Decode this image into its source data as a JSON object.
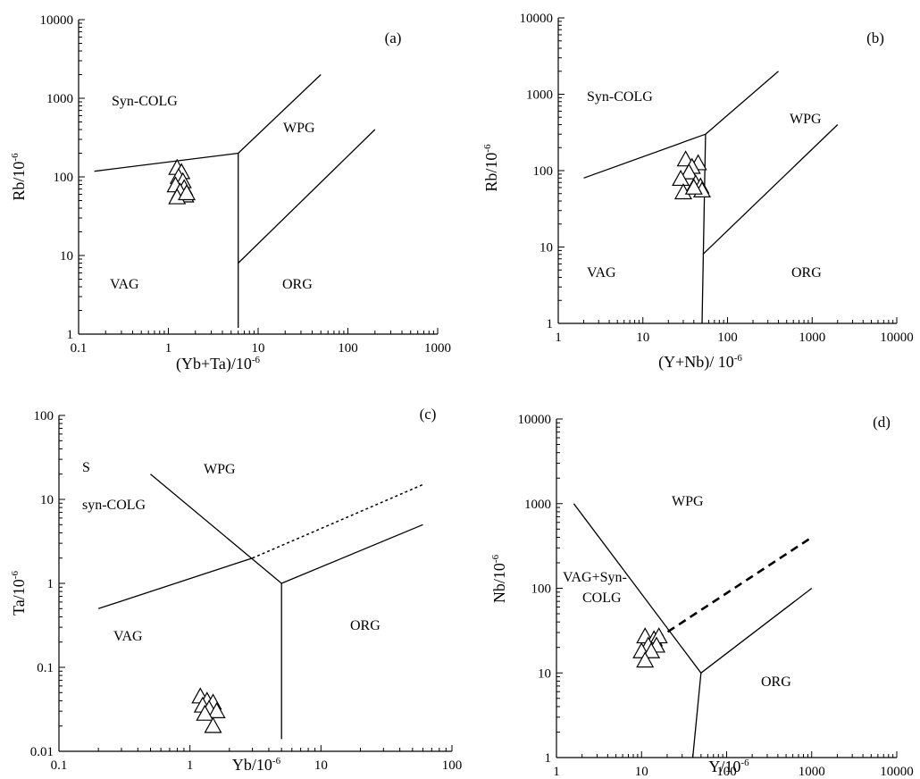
{
  "chart_data": [
    {
      "id": "a",
      "type": "scatter",
      "panel_label": "(a)",
      "xlabel": "(Yb+Ta)/10",
      "xlabel_sup": "-6",
      "ylabel": "Rb/10",
      "ylabel_sup": "-6",
      "xscale": "log",
      "yscale": "log",
      "xlim": [
        0.1,
        1000
      ],
      "ylim": [
        1,
        10000
      ],
      "xticks": [
        "0.1",
        "1",
        "10",
        "100",
        "1000"
      ],
      "yticks": [
        "1",
        "10",
        "100",
        "1000",
        "10000"
      ],
      "regions": [
        "Syn-COLG",
        "WPG",
        "VAG",
        "ORG"
      ],
      "boundaries": [
        {
          "style": "solid",
          "points": [
            [
              0.15,
              118
            ],
            [
              6,
              200
            ]
          ]
        },
        {
          "style": "solid",
          "points": [
            [
              6,
              200
            ],
            [
              6,
              1.2
            ]
          ]
        },
        {
          "style": "solid",
          "points": [
            [
              6,
              200
            ],
            [
              50,
              2000
            ]
          ]
        },
        {
          "style": "solid",
          "points": [
            [
              6,
              8
            ],
            [
              200,
              400
            ]
          ]
        }
      ],
      "points": [
        [
          1.25,
          130
        ],
        [
          1.4,
          115
        ],
        [
          1.3,
          100
        ],
        [
          1.45,
          88
        ],
        [
          1.2,
          78
        ],
        [
          1.5,
          72
        ],
        [
          1.35,
          65
        ],
        [
          1.55,
          58
        ],
        [
          1.25,
          55
        ],
        [
          1.6,
          62
        ]
      ]
    },
    {
      "id": "b",
      "type": "scatter",
      "panel_label": "(b)",
      "xlabel": "(Y+Nb)/ 10",
      "xlabel_sup": "-6",
      "ylabel": "Rb/10",
      "ylabel_sup": "-6",
      "xscale": "log",
      "yscale": "log",
      "xlim": [
        1,
        10000
      ],
      "ylim": [
        1,
        10000
      ],
      "xticks": [
        "1",
        "10",
        "100",
        "1000",
        "10000"
      ],
      "yticks": [
        "1",
        "10",
        "100",
        "1000",
        "10000"
      ],
      "regions": [
        "Syn-COLG",
        "WPG",
        "VAG",
        "ORG"
      ],
      "boundaries": [
        {
          "style": "solid",
          "points": [
            [
              2,
              80
            ],
            [
              55,
              300
            ]
          ]
        },
        {
          "style": "solid",
          "points": [
            [
              55,
              300
            ],
            [
              400,
              2000
            ]
          ]
        },
        {
          "style": "solid",
          "points": [
            [
              55,
              300
            ],
            [
              50,
              1
            ]
          ]
        },
        {
          "style": "solid",
          "points": [
            [
              51,
              8
            ],
            [
              2000,
              400
            ]
          ]
        }
      ],
      "points": [
        [
          32,
          140
        ],
        [
          45,
          125
        ],
        [
          38,
          112
        ],
        [
          35,
          95
        ],
        [
          28,
          78
        ],
        [
          42,
          68
        ],
        [
          48,
          62
        ],
        [
          50,
          55
        ],
        [
          30,
          52
        ],
        [
          40,
          60
        ]
      ]
    },
    {
      "id": "c",
      "type": "scatter",
      "panel_label": "(c)",
      "xlabel": "Yb/10",
      "xlabel_sup": "-6",
      "ylabel": "Ta/10",
      "ylabel_sup": "-6",
      "xscale": "log",
      "yscale": "log",
      "xlim": [
        0.1,
        100
      ],
      "ylim": [
        0.01,
        100
      ],
      "xticks": [
        "0.1",
        "1",
        "10",
        "100"
      ],
      "yticks": [
        "0.01",
        "0.1",
        "1",
        "10",
        "100"
      ],
      "regions": [
        "S",
        "syn-COLG",
        "WPG",
        "VAG",
        "ORG"
      ],
      "boundaries": [
        {
          "style": "solid",
          "points": [
            [
              0.2,
              0.5
            ],
            [
              3,
              2
            ]
          ]
        },
        {
          "style": "solid",
          "points": [
            [
              0.5,
              20
            ],
            [
              5,
              1
            ]
          ]
        },
        {
          "style": "solid",
          "points": [
            [
              5,
              1
            ],
            [
              5,
              0.014
            ]
          ]
        },
        {
          "style": "solid",
          "points": [
            [
              5,
              1
            ],
            [
              60,
              5
            ]
          ]
        },
        {
          "style": "dotted",
          "points": [
            [
              3,
              2
            ],
            [
              60,
              15
            ]
          ]
        }
      ],
      "points": [
        [
          1.2,
          0.045
        ],
        [
          1.35,
          0.04
        ],
        [
          1.5,
          0.038
        ],
        [
          1.25,
          0.035
        ],
        [
          1.4,
          0.032
        ],
        [
          1.6,
          0.03
        ],
        [
          1.3,
          0.028
        ],
        [
          1.5,
          0.02
        ]
      ]
    },
    {
      "id": "d",
      "type": "scatter",
      "panel_label": "(d)",
      "xlabel": "Y/10",
      "xlabel_sup": "-6",
      "ylabel": "Nb/10",
      "ylabel_sup": "-6",
      "xscale": "log",
      "yscale": "log",
      "xlim": [
        1,
        10000
      ],
      "ylim": [
        1,
        10000
      ],
      "xticks": [
        "1",
        "10",
        "100",
        "1000",
        "10000"
      ],
      "yticks": [
        "1",
        "10",
        "100",
        "1000",
        "10000"
      ],
      "regions": [
        "WPG",
        "VAG+Syn-",
        "COLG",
        "ORG"
      ],
      "boundaries": [
        {
          "style": "solid",
          "points": [
            [
              1.6,
              1000
            ],
            [
              50,
              10
            ]
          ]
        },
        {
          "style": "solid",
          "points": [
            [
              50,
              10
            ],
            [
              40,
              1
            ]
          ]
        },
        {
          "style": "solid",
          "points": [
            [
              50,
              10
            ],
            [
              1000,
              100
            ]
          ]
        },
        {
          "style": "dashed",
          "points": [
            [
              15,
              25
            ],
            [
              1000,
              400
            ]
          ]
        }
      ],
      "points": [
        [
          11,
          27
        ],
        [
          14,
          25
        ],
        [
          16,
          27
        ],
        [
          12,
          21
        ],
        [
          15,
          21
        ],
        [
          10,
          18
        ],
        [
          13,
          18
        ],
        [
          11,
          14
        ]
      ]
    }
  ]
}
